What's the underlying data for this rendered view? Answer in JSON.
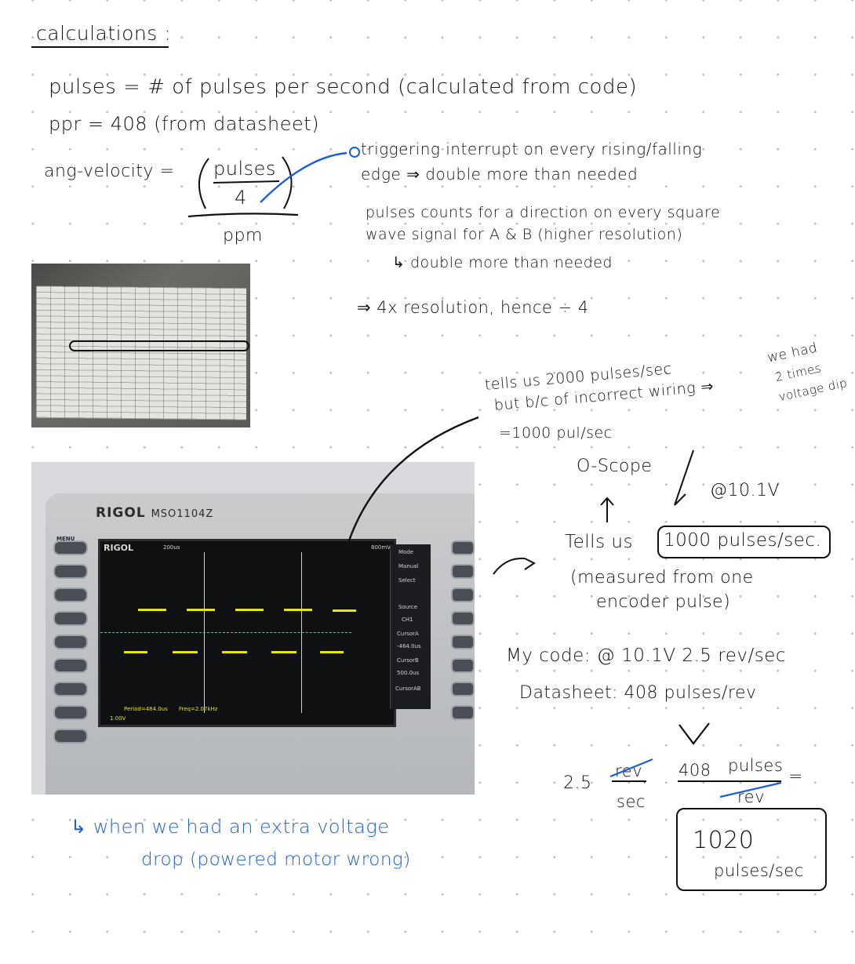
{
  "title": "calculations :",
  "definitions": {
    "pulses": "pulses = # of pulses per second (calculated from code)",
    "ppr": "ppr = 408 (from datasheet)",
    "ang_velocity_lhs": "ang-velocity =",
    "numerator": "pulses",
    "denominator": "4",
    "divisor": "ppm"
  },
  "notes": {
    "triggering_1": "triggering interrupt on every rising/falling",
    "triggering_2": "edge ⇒ double more than needed",
    "pulse_counts_1": "pulses counts for a direction on every square",
    "pulse_counts_2": "wave signal for A & B (higher resolution)",
    "pulse_counts_3": "↳ double more than needed",
    "resolution": "⇒ 4x resolution, hence ÷ 4",
    "tells_1": "tells us 2000 pulses/sec",
    "tells_2": "but b/c of incorrect wiring ⇒",
    "tells_3": "=1000 pul/sec",
    "twice_1": "we had",
    "twice_2": "2 times",
    "twice_3": "voltage dip",
    "oscope": "O-Scope",
    "voltage": "@10.1V",
    "tells_us": "Tells us",
    "tells_us_boxed": "1000 pulses/sec.",
    "measured_1": "(measured from one",
    "measured_2": "encoder pulse)",
    "my_code": "My code: @ 10.1V 2.5 rev/sec",
    "datasheet": "Datasheet: 408 pulses/rev",
    "calc_a": "2.5",
    "calc_rev": "rev",
    "calc_sec": "sec",
    "calc_dot": "·",
    "calc_408": "408",
    "calc_pulses": "pulses",
    "calc_rev2": "rev",
    "calc_eq": "=",
    "result_num": "1020",
    "result_unit": "pulses/sec",
    "blue_1": "↳ when we had an extra voltage",
    "blue_2": "drop (powered motor wrong)"
  },
  "scope": {
    "brand": "RIGOL",
    "model": "MSO1104Z",
    "menu": "MENU",
    "tab_mode": "Mode",
    "tab_manual": "Manual",
    "tab_select": "Select",
    "tab_source": "Source",
    "tab_ch1": "CH1",
    "tab_cursora": "CursorA",
    "cursora_val": "-464.0us",
    "tab_cursorb": "CursorB",
    "cursorb_val": "500.0us",
    "tab_cursorab": "CursorAB",
    "period": "Period=484.0us",
    "freq": "Freq=2.07kHz",
    "ch1_scale": "1.00V",
    "timebase": "200us",
    "trigger": "800mV"
  },
  "colors": {
    "ink": "#111111",
    "blue_ink": "#1b5fd6",
    "trace": "#e6e600"
  }
}
